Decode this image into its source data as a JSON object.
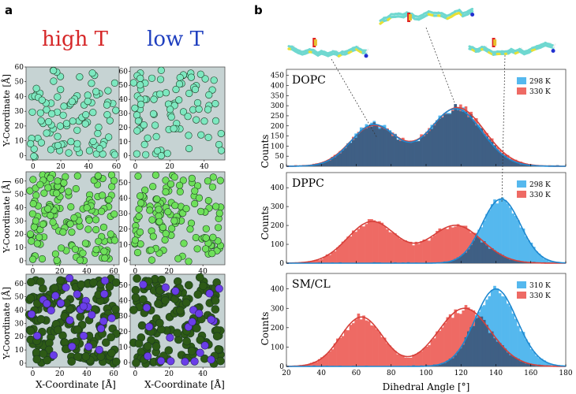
{
  "panel_a": {
    "letter": "a",
    "col_titles": [
      {
        "text": "high T",
        "color": "#d62728"
      },
      {
        "text": "low T",
        "color": "#1f3fbf"
      }
    ],
    "y_label": "Y-Coordinate [Å]",
    "x_label": "X-Coordinate [Å]",
    "bg_color": "#c6d3d3",
    "scatter_plots": [
      {
        "id": "r0c0",
        "ticks_x": [
          "0",
          "20",
          "40",
          "60"
        ],
        "ticks_y": [
          "0",
          "10",
          "20",
          "30",
          "40",
          "50",
          "60"
        ],
        "xrange": [
          -5,
          62
        ],
        "yrange": [
          -3,
          60
        ],
        "fill": "#7de8c0",
        "n": 100,
        "seed": 11,
        "purple": 0
      },
      {
        "id": "r0c1",
        "ticks_x": [
          "0",
          "20",
          "40"
        ],
        "ticks_y": [
          "0",
          "10",
          "20",
          "30",
          "40",
          "50",
          "60"
        ],
        "xrange": [
          -3,
          52
        ],
        "yrange": [
          -3,
          63
        ],
        "fill": "#7de8c0",
        "n": 90,
        "seed": 23,
        "purple": 0
      },
      {
        "id": "r1c0",
        "ticks_x": [
          "0",
          "20",
          "40",
          "60"
        ],
        "ticks_y": [
          "0",
          "10",
          "20",
          "30",
          "40",
          "50",
          "60"
        ],
        "xrange": [
          -5,
          64
        ],
        "yrange": [
          -3,
          67
        ],
        "fill": "#6ee05a",
        "n": 150,
        "seed": 37,
        "purple": 0
      },
      {
        "id": "r1c1",
        "ticks_x": [
          "0",
          "20",
          "40"
        ],
        "ticks_y": [
          "0",
          "10",
          "20",
          "30",
          "40",
          "50"
        ],
        "xrange": [
          -3,
          53
        ],
        "yrange": [
          -3,
          57
        ],
        "fill": "#6ee05a",
        "n": 120,
        "seed": 41,
        "purple": 0
      },
      {
        "id": "r2c0",
        "ticks_x": [
          "0",
          "20",
          "40",
          "60"
        ],
        "ticks_y": [
          "0",
          "10",
          "20",
          "30",
          "40",
          "50",
          "60"
        ],
        "xrange": [
          -5,
          64
        ],
        "yrange": [
          -3,
          67
        ],
        "fill": "#2d5a16",
        "n": 180,
        "seed": 53,
        "purple": 26
      },
      {
        "id": "r2c1",
        "ticks_x": [
          "0",
          "20",
          "40"
        ],
        "ticks_y": [
          "0",
          "10",
          "20",
          "30",
          "40",
          "50"
        ],
        "xrange": [
          -3,
          53
        ],
        "yrange": [
          -3,
          57
        ],
        "fill": "#2d5a16",
        "n": 150,
        "seed": 67,
        "purple": 22
      }
    ]
  },
  "panel_b": {
    "letter": "b",
    "x_label": "Dihedral Angle [°]",
    "y_label": "Counts",
    "x_ticks": [
      "20",
      "40",
      "60",
      "80",
      "100",
      "120",
      "140",
      "160",
      "180"
    ]
  },
  "chart_data": [
    {
      "type": "area",
      "title": "DOPC",
      "xlabel": "Dihedral Angle [°]",
      "ylabel": "Counts",
      "xlim": [
        20,
        180
      ],
      "ylim": [
        0,
        480
      ],
      "y_ticks": [
        "0",
        "50",
        "100",
        "150",
        "200",
        "250",
        "300",
        "350",
        "400",
        "450"
      ],
      "legend_position": "top-right",
      "series": [
        {
          "name": "298 K",
          "color": "#55b8ee",
          "components": [
            {
              "mu": 70,
              "sigma": 13,
              "amp": 205
            },
            {
              "mu": 117,
              "sigma": 15,
              "amp": 285
            }
          ]
        },
        {
          "name": "330 K",
          "color": "#ee6a64",
          "components": [
            {
              "mu": 70,
              "sigma": 13.5,
              "amp": 200
            },
            {
              "mu": 118,
              "sigma": 15.5,
              "amp": 290
            }
          ]
        }
      ]
    },
    {
      "type": "area",
      "title": "DPPC",
      "xlabel": "Dihedral Angle [°]",
      "ylabel": "Counts",
      "xlim": [
        20,
        180
      ],
      "ylim": [
        0,
        480
      ],
      "y_ticks": [
        "0",
        "100",
        "200",
        "300",
        "400"
      ],
      "legend_position": "top-right",
      "series": [
        {
          "name": "298 K",
          "color": "#55b8ee",
          "components": [
            {
              "mu": 143,
              "sigma": 11,
              "amp": 340
            }
          ]
        },
        {
          "name": "330 K",
          "color": "#ee6a64",
          "components": [
            {
              "mu": 69,
              "sigma": 14,
              "amp": 220
            },
            {
              "mu": 117,
              "sigma": 15,
              "amp": 200
            }
          ]
        }
      ]
    },
    {
      "type": "area",
      "title": "SM/CL",
      "xlabel": "Dihedral Angle [°]",
      "ylabel": "Counts",
      "xlim": [
        20,
        180
      ],
      "ylim": [
        0,
        480
      ],
      "y_ticks": [
        "0",
        "100",
        "200",
        "300",
        "400"
      ],
      "legend_position": "top-right",
      "series": [
        {
          "name": "310 K",
          "color": "#55b8ee",
          "components": [
            {
              "mu": 140,
              "sigma": 12,
              "amp": 400
            }
          ]
        },
        {
          "name": "330 K",
          "color": "#ee6a64",
          "components": [
            {
              "mu": 63,
              "sigma": 12,
              "amp": 255
            },
            {
              "mu": 122,
              "sigma": 15,
              "amp": 300
            }
          ]
        }
      ]
    }
  ]
}
